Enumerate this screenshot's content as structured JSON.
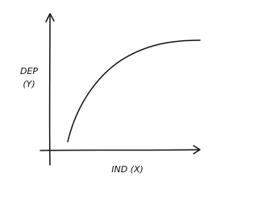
{
  "y_label": {
    "lines": [
      "DEP",
      "(Y)"
    ]
  },
  "x_label": "IND (X)"
}
